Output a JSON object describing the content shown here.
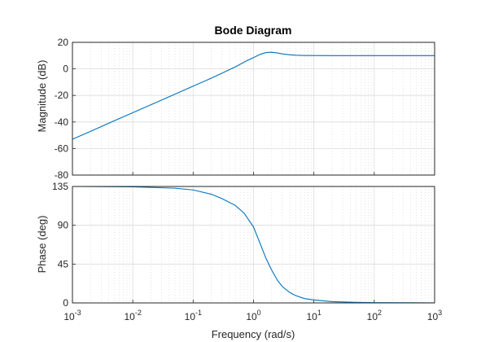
{
  "chart_data": {
    "type": "line",
    "title": "Bode Diagram",
    "xlabel": "Frequency  (rad/s)",
    "x_scale": "log",
    "x_range": [
      0.001,
      1000
    ],
    "x_tick_labels": [
      {
        "base": "10",
        "exp": "-3"
      },
      {
        "base": "10",
        "exp": "-2"
      },
      {
        "base": "10",
        "exp": "-1"
      },
      {
        "base": "10",
        "exp": "0"
      },
      {
        "base": "10",
        "exp": "1"
      },
      {
        "base": "10",
        "exp": "2"
      },
      {
        "base": "10",
        "exp": "3"
      }
    ],
    "grid": "major and minor",
    "panels": [
      {
        "name": "magnitude",
        "ylabel": "Magnitude (dB)",
        "ylim": [
          -80,
          20
        ],
        "yticks": [
          20,
          0,
          -20,
          -40,
          -60,
          -80
        ],
        "series": [
          {
            "color": "#0072bd",
            "points": [
              [
                0.001,
                -53.0
              ],
              [
                0.002,
                -47.0
              ],
              [
                0.005,
                -39.0
              ],
              [
                0.01,
                -33.0
              ],
              [
                0.02,
                -27.0
              ],
              [
                0.05,
                -19.0
              ],
              [
                0.1,
                -13.0
              ],
              [
                0.2,
                -7.0
              ],
              [
                0.5,
                1.5
              ],
              [
                0.8,
                6.5
              ],
              [
                1.0,
                8.5
              ],
              [
                1.3,
                11.0
              ],
              [
                1.6,
                12.3
              ],
              [
                2.0,
                12.5
              ],
              [
                2.5,
                12.0
              ],
              [
                3.0,
                11.3
              ],
              [
                4.0,
                10.6
              ],
              [
                5.0,
                10.3
              ],
              [
                7.0,
                10.1
              ],
              [
                10,
                10.05
              ],
              [
                20,
                10.0
              ],
              [
                50,
                10.0
              ],
              [
                100,
                10.0
              ],
              [
                1000,
                10.0
              ]
            ]
          }
        ]
      },
      {
        "name": "phase",
        "ylabel": "Phase (deg)",
        "ylim": [
          0,
          135
        ],
        "yticks": [
          135,
          90,
          45,
          0
        ],
        "series": [
          {
            "color": "#0072bd",
            "points": [
              [
                0.001,
                135.0
              ],
              [
                0.01,
                134.6
              ],
              [
                0.05,
                133.0
              ],
              [
                0.1,
                131.0
              ],
              [
                0.2,
                126.0
              ],
              [
                0.3,
                121.0
              ],
              [
                0.5,
                113.0
              ],
              [
                0.7,
                104.0
              ],
              [
                1.0,
                88.0
              ],
              [
                1.3,
                68.0
              ],
              [
                1.6,
                52.0
              ],
              [
                2.0,
                38.0
              ],
              [
                2.5,
                26.0
              ],
              [
                3.0,
                19.0
              ],
              [
                4.0,
                12.0
              ],
              [
                5.0,
                8.5
              ],
              [
                7.0,
                5.0
              ],
              [
                10,
                3.5
              ],
              [
                20,
                1.5
              ],
              [
                50,
                0.6
              ],
              [
                100,
                0.3
              ],
              [
                1000,
                0.05
              ]
            ]
          }
        ]
      }
    ]
  }
}
